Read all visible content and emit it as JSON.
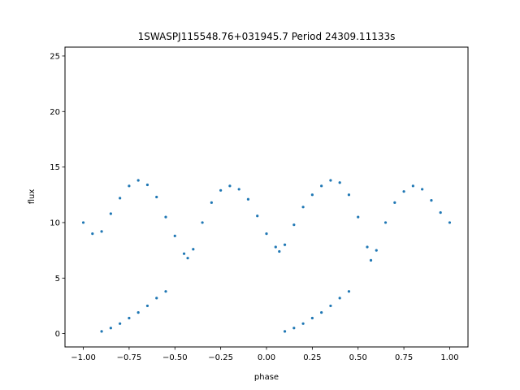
{
  "chart_data": {
    "type": "scatter",
    "title": "1SWASPJ115548.76+031945.7 Period 24309.11133s",
    "xlabel": "phase",
    "ylabel": "flux",
    "xlim": [
      -1.1,
      1.1
    ],
    "ylim": [
      -1.2,
      25.8
    ],
    "xticks": [
      -1.0,
      -0.75,
      -0.5,
      -0.25,
      0.0,
      0.25,
      0.5,
      0.75,
      1.0
    ],
    "xtick_labels": [
      "−1.00",
      "−0.75",
      "−0.50",
      "−0.25",
      "0.00",
      "0.25",
      "0.50",
      "0.75",
      "1.00"
    ],
    "yticks": [
      0,
      5,
      10,
      15,
      20,
      25
    ],
    "ytick_labels": [
      "0",
      "5",
      "10",
      "15",
      "20",
      "25"
    ],
    "grid": false,
    "point_color": "#1f77b4",
    "series": [
      {
        "x": [
          -1.0,
          -0.95,
          -0.9,
          -0.85,
          -0.8,
          -0.75,
          -0.7,
          -0.65,
          -0.6,
          -0.55,
          -0.5,
          -0.45,
          -0.43,
          -0.4,
          -0.35,
          -0.3,
          -0.25,
          -0.2,
          -0.15,
          -0.1,
          -0.05,
          0.0,
          0.05,
          0.07,
          0.1,
          0.15,
          0.2,
          0.25,
          0.3,
          0.35,
          0.4,
          0.45,
          0.5,
          0.55,
          0.57,
          0.6,
          0.65,
          0.7,
          0.75,
          0.8,
          0.85,
          0.9,
          0.95,
          1.0
        ],
        "y": [
          10.0,
          9.0,
          9.2,
          10.8,
          12.2,
          13.3,
          13.8,
          13.4,
          12.3,
          10.5,
          8.8,
          7.2,
          6.8,
          7.6,
          10.0,
          11.8,
          12.9,
          13.3,
          13.0,
          12.1,
          10.6,
          9.0,
          7.8,
          7.4,
          8.0,
          9.8,
          11.4,
          12.5,
          13.3,
          13.8,
          13.6,
          12.5,
          10.5,
          7.8,
          6.6,
          7.5,
          10.0,
          11.8,
          12.8,
          13.3,
          13.0,
          12.0,
          10.9,
          10.0
        ]
      },
      {
        "x": [
          -0.9,
          -0.85,
          -0.8,
          -0.75,
          -0.7,
          -0.65,
          -0.6,
          -0.55,
          0.1,
          0.15,
          0.2,
          0.25,
          0.3,
          0.35,
          0.4,
          0.45
        ],
        "y": [
          0.2,
          0.5,
          0.9,
          1.4,
          1.9,
          2.5,
          3.2,
          3.8,
          0.2,
          0.5,
          0.9,
          1.4,
          1.9,
          2.5,
          3.2,
          3.8
        ]
      }
    ]
  }
}
